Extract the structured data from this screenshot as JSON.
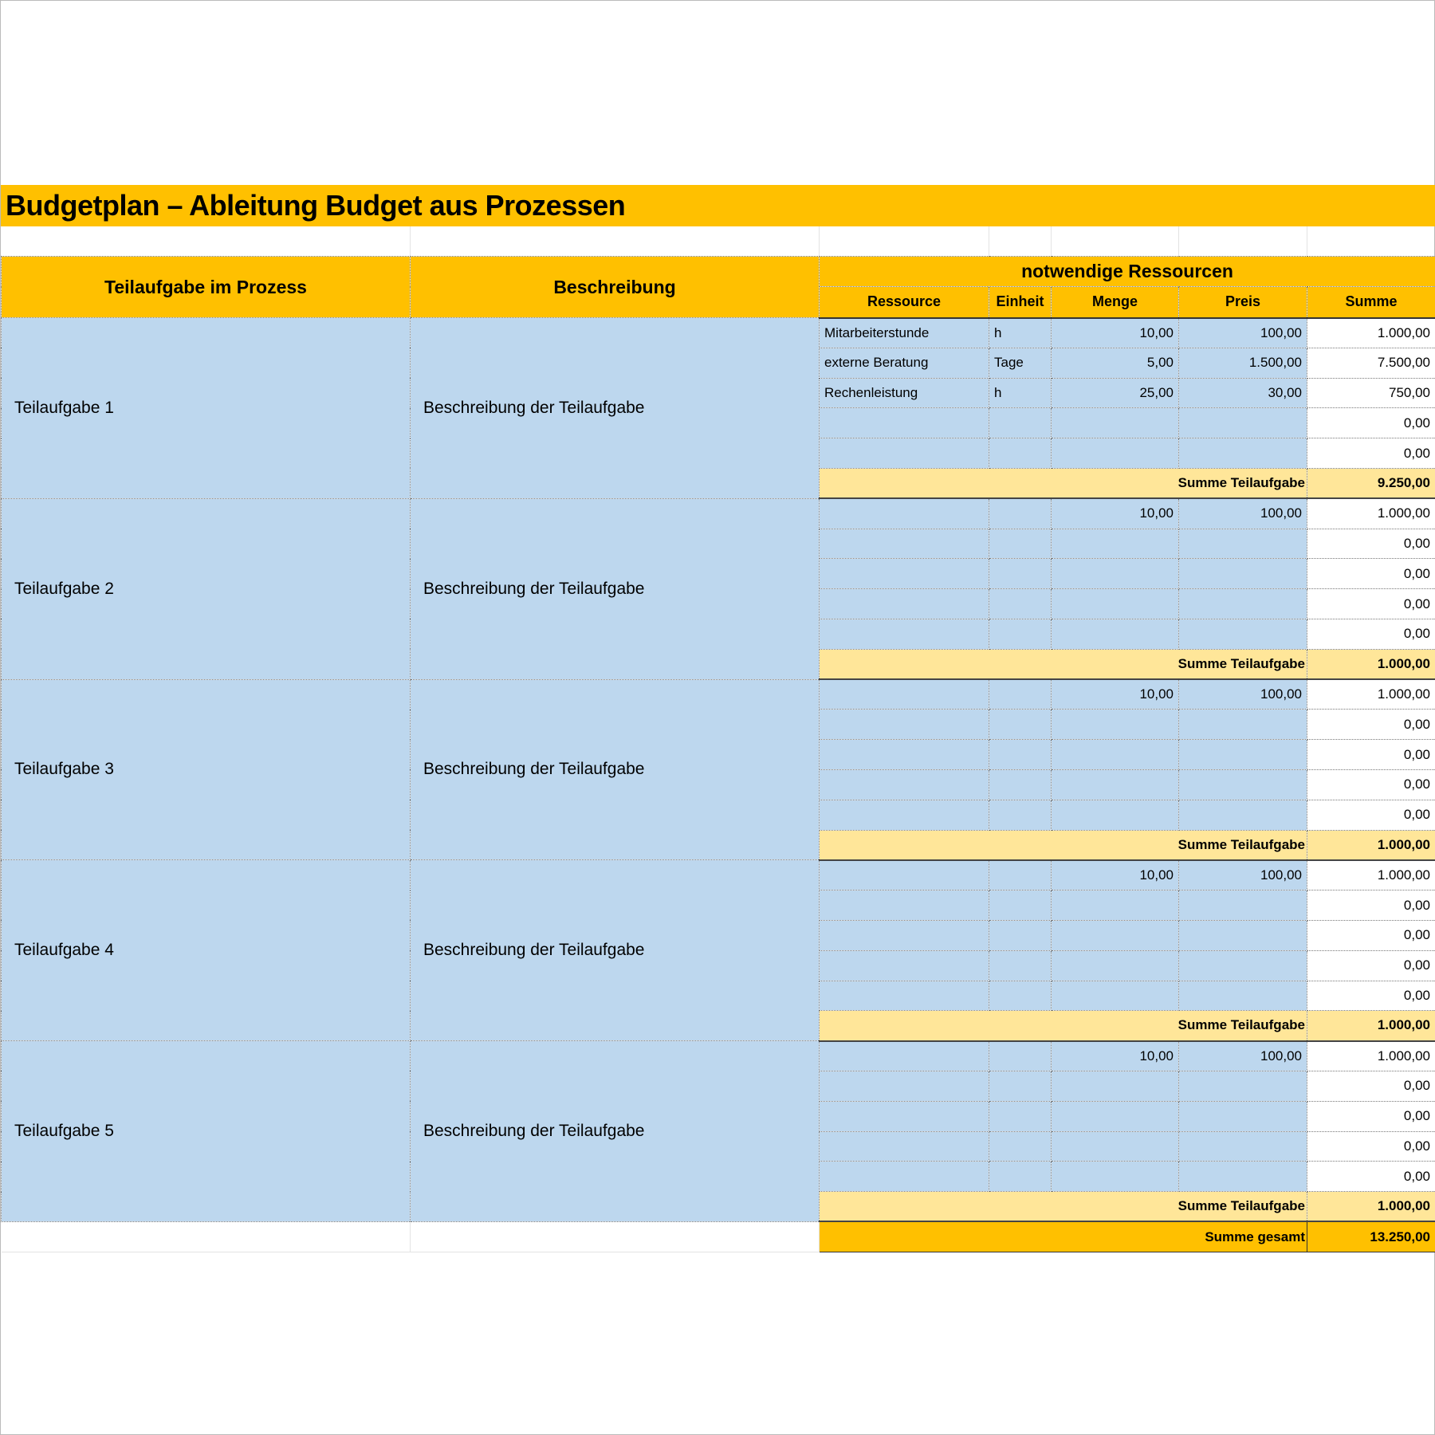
{
  "title": "Budgetplan – Ableitung Budget aus Prozessen",
  "colors": {
    "header": "#FFC000",
    "input": "#BDD7EE",
    "subtotal": "#FFE699"
  },
  "header": {
    "task": "Teilaufgabe im Prozess",
    "description": "Beschreibung",
    "resources": "notwendige Ressourcen",
    "columns": [
      "Ressource",
      "Einheit",
      "Menge",
      "Preis",
      "Summe"
    ]
  },
  "tasks": [
    {
      "name": "Teilaufgabe 1",
      "description": "Beschreibung der Teilaufgabe",
      "lines": [
        {
          "resource": "Mitarbeiterstunde",
          "unit": "h",
          "qty": "10,00",
          "price": "100,00",
          "sum": "1.000,00"
        },
        {
          "resource": "externe Beratung",
          "unit": "Tage",
          "qty": "5,00",
          "price": "1.500,00",
          "sum": "7.500,00"
        },
        {
          "resource": "Rechenleistung",
          "unit": "h",
          "qty": "25,00",
          "price": "30,00",
          "sum": "750,00"
        },
        {
          "resource": "",
          "unit": "",
          "qty": "",
          "price": "",
          "sum": "0,00"
        },
        {
          "resource": "",
          "unit": "",
          "qty": "",
          "price": "",
          "sum": "0,00"
        }
      ],
      "subtotal_label": "Summe Teilaufgabe",
      "subtotal": "9.250,00"
    },
    {
      "name": "Teilaufgabe 2",
      "description": "Beschreibung der Teilaufgabe",
      "lines": [
        {
          "resource": "",
          "unit": "",
          "qty": "10,00",
          "price": "100,00",
          "sum": "1.000,00"
        },
        {
          "resource": "",
          "unit": "",
          "qty": "",
          "price": "",
          "sum": "0,00"
        },
        {
          "resource": "",
          "unit": "",
          "qty": "",
          "price": "",
          "sum": "0,00"
        },
        {
          "resource": "",
          "unit": "",
          "qty": "",
          "price": "",
          "sum": "0,00"
        },
        {
          "resource": "",
          "unit": "",
          "qty": "",
          "price": "",
          "sum": "0,00"
        }
      ],
      "subtotal_label": "Summe Teilaufgabe",
      "subtotal": "1.000,00"
    },
    {
      "name": "Teilaufgabe 3",
      "description": "Beschreibung der Teilaufgabe",
      "lines": [
        {
          "resource": "",
          "unit": "",
          "qty": "10,00",
          "price": "100,00",
          "sum": "1.000,00"
        },
        {
          "resource": "",
          "unit": "",
          "qty": "",
          "price": "",
          "sum": "0,00"
        },
        {
          "resource": "",
          "unit": "",
          "qty": "",
          "price": "",
          "sum": "0,00"
        },
        {
          "resource": "",
          "unit": "",
          "qty": "",
          "price": "",
          "sum": "0,00"
        },
        {
          "resource": "",
          "unit": "",
          "qty": "",
          "price": "",
          "sum": "0,00"
        }
      ],
      "subtotal_label": "Summe Teilaufgabe",
      "subtotal": "1.000,00"
    },
    {
      "name": "Teilaufgabe 4",
      "description": "Beschreibung der Teilaufgabe",
      "lines": [
        {
          "resource": "",
          "unit": "",
          "qty": "10,00",
          "price": "100,00",
          "sum": "1.000,00"
        },
        {
          "resource": "",
          "unit": "",
          "qty": "",
          "price": "",
          "sum": "0,00"
        },
        {
          "resource": "",
          "unit": "",
          "qty": "",
          "price": "",
          "sum": "0,00"
        },
        {
          "resource": "",
          "unit": "",
          "qty": "",
          "price": "",
          "sum": "0,00"
        },
        {
          "resource": "",
          "unit": "",
          "qty": "",
          "price": "",
          "sum": "0,00"
        }
      ],
      "subtotal_label": "Summe Teilaufgabe",
      "subtotal": "1.000,00"
    },
    {
      "name": "Teilaufgabe 5",
      "description": "Beschreibung der Teilaufgabe",
      "lines": [
        {
          "resource": "",
          "unit": "",
          "qty": "10,00",
          "price": "100,00",
          "sum": "1.000,00"
        },
        {
          "resource": "",
          "unit": "",
          "qty": "",
          "price": "",
          "sum": "0,00"
        },
        {
          "resource": "",
          "unit": "",
          "qty": "",
          "price": "",
          "sum": "0,00"
        },
        {
          "resource": "",
          "unit": "",
          "qty": "",
          "price": "",
          "sum": "0,00"
        },
        {
          "resource": "",
          "unit": "",
          "qty": "",
          "price": "",
          "sum": "0,00"
        }
      ],
      "subtotal_label": "Summe Teilaufgabe",
      "subtotal": "1.000,00"
    }
  ],
  "total": {
    "label": "Summe gesamt",
    "value": "13.250,00"
  }
}
